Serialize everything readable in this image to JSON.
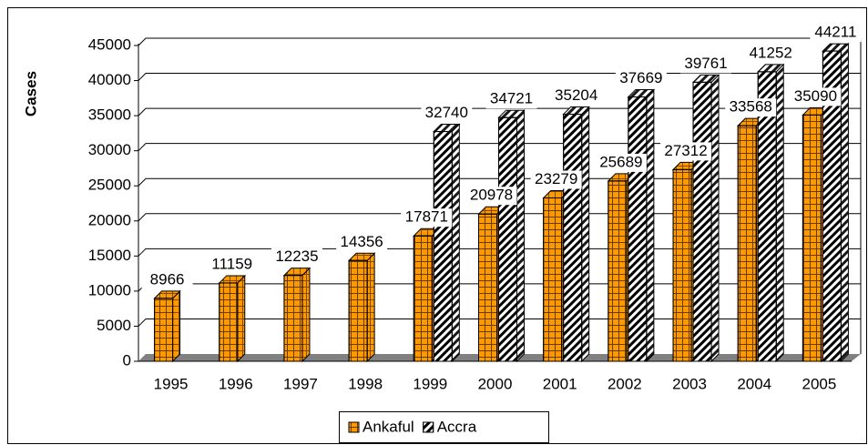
{
  "chart_data": {
    "type": "bar3d",
    "y_label": "Cases",
    "categories": [
      "1995",
      "1996",
      "1997",
      "1998",
      "1999",
      "2000",
      "2001",
      "2002",
      "2003",
      "2004",
      "2005"
    ],
    "series": [
      {
        "name": "Ankaful",
        "color": "#ff9900",
        "values": [
          8966,
          11159,
          12235,
          14356,
          17871,
          20978,
          23279,
          25689,
          27312,
          33568,
          35090
        ]
      },
      {
        "name": "Accra",
        "color": "#ffffff",
        "values": [
          null,
          null,
          null,
          null,
          32740,
          34721,
          35204,
          37669,
          39761,
          41252,
          44211
        ]
      }
    ],
    "ylim": [
      0,
      45000
    ],
    "yticks": [
      0,
      5000,
      10000,
      15000,
      20000,
      25000,
      30000,
      35000,
      40000,
      45000
    ],
    "grid": true,
    "legend": "bottom"
  }
}
